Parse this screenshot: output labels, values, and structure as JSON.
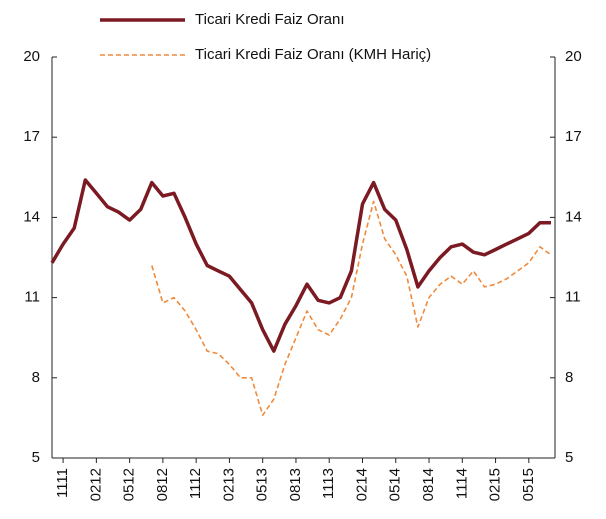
{
  "chart_data": {
    "type": "line",
    "categories": [
      null,
      "1111",
      null,
      null,
      "0212",
      null,
      null,
      "0512",
      null,
      null,
      "0812",
      null,
      null,
      "1112",
      null,
      null,
      "0213",
      null,
      null,
      "0513",
      null,
      null,
      "0813",
      null,
      null,
      "1113",
      null,
      null,
      "0214",
      null,
      null,
      "0514",
      null,
      null,
      "0814",
      null,
      null,
      "1114",
      null,
      null,
      "0215",
      null,
      null,
      "0515",
      null,
      null
    ],
    "series": [
      {
        "name": "Ticari Kredi Faiz Oranı",
        "color": "#7b1a22",
        "style": "solid",
        "values": [
          12.3,
          13.0,
          13.6,
          15.4,
          14.9,
          14.4,
          14.2,
          13.9,
          14.3,
          15.3,
          14.8,
          14.9,
          14.0,
          13.0,
          12.2,
          12.0,
          11.8,
          11.3,
          10.8,
          9.8,
          9.0,
          10.0,
          10.7,
          11.5,
          10.9,
          10.8,
          11.0,
          12.0,
          14.5,
          15.3,
          14.3,
          13.9,
          12.8,
          11.4,
          12.0,
          12.5,
          12.9,
          13.0,
          12.7,
          12.6,
          12.8,
          13.0,
          13.2,
          13.4,
          13.8,
          13.8
        ]
      },
      {
        "name": "Ticari Kredi Faiz Oranı (KMH Hariç)",
        "color": "#f08a3c",
        "style": "dashed",
        "values": [
          null,
          null,
          null,
          null,
          null,
          null,
          null,
          null,
          null,
          12.2,
          10.8,
          11.0,
          10.5,
          9.8,
          9.0,
          8.9,
          8.5,
          8.0,
          8.0,
          6.6,
          7.2,
          8.5,
          9.5,
          10.5,
          9.8,
          9.6,
          10.2,
          11.0,
          13.0,
          14.6,
          13.2,
          12.6,
          11.8,
          9.9,
          11.0,
          11.5,
          11.8,
          11.5,
          12.0,
          11.4,
          11.5,
          11.7,
          12.0,
          12.3,
          12.9,
          12.6
        ]
      }
    ],
    "ylim": [
      5,
      20
    ],
    "yticks": [
      5,
      8,
      11,
      14,
      17,
      20
    ],
    "y2lim": [
      5,
      20
    ],
    "y2ticks": [
      5,
      8,
      11,
      14,
      17,
      20
    ]
  }
}
